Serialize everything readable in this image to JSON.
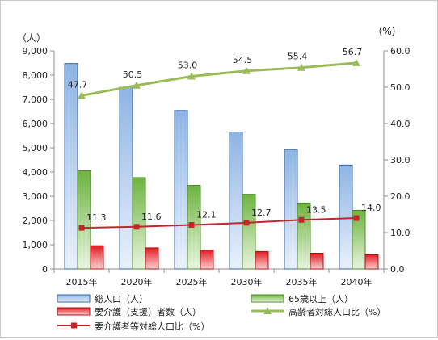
{
  "chart_data": {
    "type": "bar",
    "categories": [
      "2015年",
      "2020年",
      "2025年",
      "2030年",
      "2035年",
      "2040年"
    ],
    "left_axis": {
      "unit_label": "（人）",
      "ylim": [
        0,
        9000
      ],
      "ticks": [
        "0",
        "1,000",
        "2,000",
        "3,000",
        "4,000",
        "5,000",
        "6,000",
        "7,000",
        "8,000",
        "9,000"
      ]
    },
    "right_axis": {
      "unit_label": "（%）",
      "ylim": [
        0,
        60
      ],
      "ticks": [
        "0.0",
        "10.0",
        "20.0",
        "30.0",
        "40.0",
        "50.0",
        "60.0"
      ]
    },
    "series": [
      {
        "name": "総人口（人）",
        "type": "bar",
        "axis": "left",
        "color": "#4f81bd",
        "values": [
          8480,
          7500,
          6540,
          5650,
          4930,
          4290
        ]
      },
      {
        "name": "65歳以上（人）",
        "type": "bar",
        "axis": "left",
        "color": "#70ad47",
        "values": [
          4050,
          3770,
          3450,
          3080,
          2720,
          2420
        ]
      },
      {
        "name": "要介護（支援）者数（人）",
        "type": "bar",
        "axis": "left",
        "color": "#e02020",
        "values": [
          960,
          870,
          780,
          720,
          650,
          590
        ]
      },
      {
        "name": "高齢者対総人口比（%）",
        "type": "line",
        "axis": "right",
        "color": "#9bbb59",
        "values": [
          47.7,
          50.5,
          53.0,
          54.5,
          55.4,
          56.7
        ],
        "labels": [
          "47.7",
          "50.5",
          "53.0",
          "54.5",
          "55.4",
          "56.7"
        ]
      },
      {
        "name": "要介護者等対総人口比（%）",
        "type": "line",
        "axis": "right",
        "color": "#c0262c",
        "values": [
          11.3,
          11.6,
          12.1,
          12.7,
          13.5,
          14.0
        ],
        "labels": [
          "11.3",
          "11.6",
          "12.1",
          "12.7",
          "13.5",
          "14.0"
        ]
      }
    ],
    "grid": false,
    "legend": "bottom"
  }
}
